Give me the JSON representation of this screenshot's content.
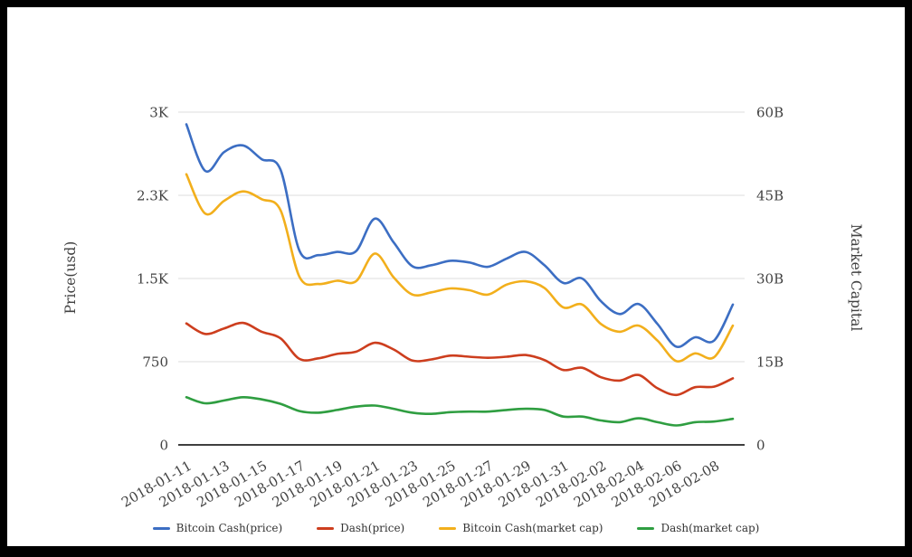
{
  "page": {
    "background": "#ffffff",
    "frame_color": "#000000"
  },
  "colors": {
    "gridline": "#dcdcdc",
    "axis_line": "#3f3f3f",
    "tick_text": "#424242",
    "legend_text": "#333333"
  },
  "chart_data": {
    "type": "line",
    "title": "",
    "grid": true,
    "legend_position": "bottom",
    "x": [
      "2018-01-11",
      "2018-01-12",
      "2018-01-13",
      "2018-01-14",
      "2018-01-15",
      "2018-01-16",
      "2018-01-17",
      "2018-01-18",
      "2018-01-19",
      "2018-01-20",
      "2018-01-21",
      "2018-01-22",
      "2018-01-23",
      "2018-01-24",
      "2018-01-25",
      "2018-01-26",
      "2018-01-27",
      "2018-01-28",
      "2018-01-29",
      "2018-01-30",
      "2018-01-31",
      "2018-02-01",
      "2018-02-02",
      "2018-02-03",
      "2018-02-04",
      "2018-02-05",
      "2018-02-06",
      "2018-02-07",
      "2018-02-08",
      "2018-02-09"
    ],
    "x_tick_labels": [
      "2018-01-11",
      "2018-01-13",
      "2018-01-15",
      "2018-01-17",
      "2018-01-19",
      "2018-01-21",
      "2018-01-23",
      "2018-01-25",
      "2018-01-27",
      "2018-01-29",
      "2018-01-31",
      "2018-02-02",
      "2018-02-04",
      "2018-02-06",
      "2018-02-08"
    ],
    "left_axis": {
      "title": "Price(usd)",
      "tick_labels": [
        "0",
        "750",
        "1.5K",
        "2.3K",
        "3K"
      ],
      "tick_values": [
        0,
        750,
        1500,
        2250,
        3000
      ],
      "range": [
        0,
        3000
      ]
    },
    "right_axis": {
      "title": "Market Capital",
      "tick_labels": [
        "0",
        "15B",
        "30B",
        "45B",
        "60B"
      ],
      "tick_values": [
        0,
        15,
        30,
        45,
        60
      ],
      "range": [
        0,
        60
      ]
    },
    "series": [
      {
        "name": "Bitcoin Cash(price)",
        "axis": "left",
        "color": "#3c6ec3",
        "values": [
          2890,
          2470,
          2640,
          2700,
          2575,
          2480,
          1750,
          1710,
          1740,
          1745,
          2040,
          1825,
          1610,
          1620,
          1660,
          1645,
          1605,
          1680,
          1740,
          1620,
          1460,
          1500,
          1295,
          1180,
          1270,
          1090,
          885,
          970,
          940,
          1265
        ]
      },
      {
        "name": "Dash(price)",
        "axis": "left",
        "color": "#cd3e1e",
        "values": [
          1095,
          1000,
          1050,
          1100,
          1020,
          960,
          775,
          780,
          820,
          840,
          920,
          860,
          760,
          770,
          805,
          795,
          785,
          795,
          810,
          765,
          675,
          695,
          610,
          580,
          630,
          510,
          450,
          520,
          525,
          600
        ]
      },
      {
        "name": "Bitcoin Cash(market cap)",
        "axis": "right",
        "color": "#f2af1c",
        "values": [
          48.8,
          41.7,
          44.0,
          45.7,
          44.3,
          42.3,
          30.3,
          29.0,
          29.6,
          29.5,
          34.5,
          30.2,
          27.1,
          27.5,
          28.2,
          27.9,
          27.1,
          28.9,
          29.5,
          28.3,
          24.8,
          25.3,
          21.8,
          20.4,
          21.5,
          18.8,
          15.1,
          16.5,
          15.8,
          21.5
        ]
      },
      {
        "name": "Dash(market cap)",
        "axis": "right",
        "color": "#2f9e41",
        "values": [
          8.6,
          7.5,
          8.0,
          8.6,
          8.2,
          7.4,
          6.1,
          5.8,
          6.3,
          6.9,
          7.1,
          6.5,
          5.8,
          5.6,
          5.9,
          6.0,
          6.0,
          6.3,
          6.5,
          6.3,
          5.1,
          5.1,
          4.4,
          4.1,
          4.8,
          4.1,
          3.5,
          4.1,
          4.2,
          4.7
        ]
      }
    ]
  }
}
